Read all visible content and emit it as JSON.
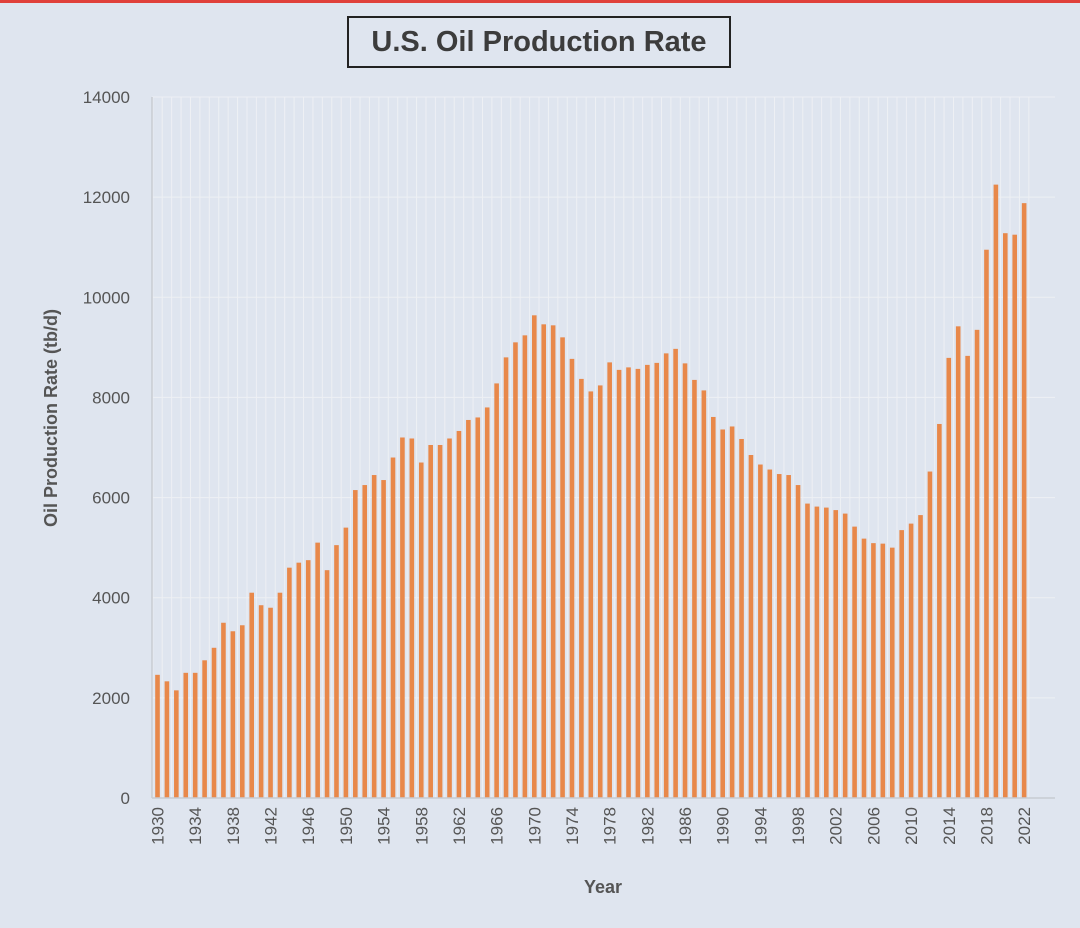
{
  "chart_data": {
    "type": "bar",
    "title": "U.S. Oil Production Rate",
    "xlabel": "Year",
    "ylabel": "Oil Production Rate (tb/d)",
    "ylim": [
      0,
      14000
    ],
    "yticks": [
      0,
      2000,
      4000,
      6000,
      8000,
      10000,
      12000,
      14000
    ],
    "xtick_labels": [
      "1930",
      "1934",
      "1938",
      "1942",
      "1946",
      "1950",
      "1954",
      "1958",
      "1962",
      "1966",
      "1970",
      "1974",
      "1978",
      "1982",
      "1986",
      "1990",
      "1994",
      "1998",
      "2002",
      "2006",
      "2010",
      "2014",
      "2018",
      "2022"
    ],
    "grid": true,
    "bar_color": "#e8884a",
    "categories": [
      1930,
      1931,
      1932,
      1933,
      1934,
      1935,
      1936,
      1937,
      1938,
      1939,
      1940,
      1941,
      1942,
      1943,
      1944,
      1945,
      1946,
      1947,
      1948,
      1949,
      1950,
      1951,
      1952,
      1953,
      1954,
      1955,
      1956,
      1957,
      1958,
      1959,
      1960,
      1961,
      1962,
      1963,
      1964,
      1965,
      1966,
      1967,
      1968,
      1969,
      1970,
      1971,
      1972,
      1973,
      1974,
      1975,
      1976,
      1977,
      1978,
      1979,
      1980,
      1981,
      1982,
      1983,
      1984,
      1985,
      1986,
      1987,
      1988,
      1989,
      1990,
      1991,
      1992,
      1993,
      1994,
      1995,
      1996,
      1997,
      1998,
      1999,
      2000,
      2001,
      2002,
      2003,
      2004,
      2005,
      2006,
      2007,
      2008,
      2009,
      2010,
      2011,
      2012,
      2013,
      2014,
      2015,
      2016,
      2017,
      2018,
      2019,
      2020,
      2021,
      2022
    ],
    "values": [
      2460,
      2330,
      2150,
      2500,
      2500,
      2750,
      3000,
      3500,
      3330,
      3450,
      4100,
      3850,
      3800,
      4100,
      4600,
      4700,
      4750,
      5100,
      4550,
      5050,
      5400,
      6150,
      6250,
      6450,
      6350,
      6800,
      7200,
      7180,
      6700,
      7050,
      7050,
      7180,
      7330,
      7550,
      7600,
      7800,
      8280,
      8800,
      9100,
      9240,
      9640,
      9460,
      9440,
      9200,
      8770,
      8370,
      8120,
      8240,
      8700,
      8550,
      8600,
      8570,
      8650,
      8690,
      8880,
      8970,
      8680,
      8350,
      8140,
      7610,
      7360,
      7420,
      7170,
      6850,
      6660,
      6560,
      6470,
      6450,
      6250,
      5880,
      5820,
      5800,
      5750,
      5680,
      5420,
      5180,
      5090,
      5080,
      5000,
      5350,
      5480,
      5650,
      6520,
      7470,
      8790,
      9420,
      8830,
      9350,
      10950,
      12250,
      11280,
      11250,
      11880
    ]
  }
}
